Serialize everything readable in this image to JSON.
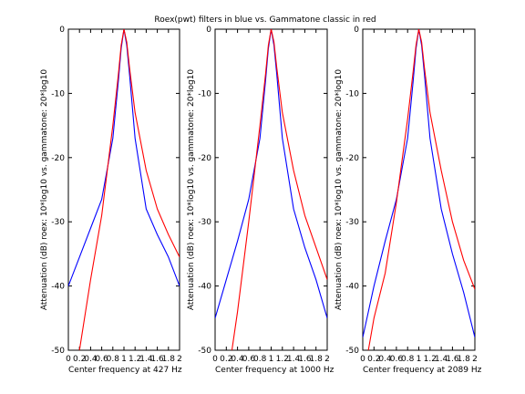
{
  "figure": {
    "title": "Roex(pwt) filters in blue vs. Gammatone classic in red"
  },
  "chart_data": [
    {
      "type": "line",
      "xlabel": "Center frequency at 427 Hz",
      "ylabel": "Attenuation (dB) roex: 10*log10 vs. gammatone: 20*log10",
      "xlim": [
        0,
        2
      ],
      "ylim": [
        -50,
        0
      ],
      "x_ticks": [
        "0",
        "0.2",
        "0.4",
        "0.6",
        "0.8",
        "1",
        "1.2",
        "1.4",
        "1.6",
        "1.8",
        "2"
      ],
      "y_ticks": [
        "0",
        "-10",
        "-20",
        "-30",
        "-40",
        "-50"
      ],
      "grid": false,
      "series": [
        {
          "color": "#0000ff",
          "x": [
            0,
            0.2,
            0.4,
            0.6,
            0.8,
            0.9,
            0.95,
            1.0,
            1.05,
            1.1,
            1.2,
            1.4,
            1.6,
            1.8,
            2.0
          ],
          "values": [
            -40,
            -35.5,
            -31,
            -26.5,
            -17,
            -8,
            -3,
            0,
            -2.5,
            -7,
            -17,
            -28,
            -32,
            -35.5,
            -40
          ]
        },
        {
          "color": "#ff0000",
          "x": [
            0.2,
            0.4,
            0.6,
            0.8,
            0.9,
            0.95,
            1.0,
            1.05,
            1.1,
            1.2,
            1.4,
            1.6,
            1.8,
            2.0
          ],
          "values": [
            -50,
            -39,
            -29,
            -15,
            -7,
            -2.5,
            0,
            -2,
            -6,
            -13,
            -22,
            -28,
            -32,
            -35.5
          ]
        }
      ]
    },
    {
      "type": "line",
      "xlabel": "Center frequency at 1000 Hz",
      "ylabel": "Attenuation (dB) roex: 10*log10 vs. gammatone: 20*log10",
      "xlim": [
        0,
        2
      ],
      "ylim": [
        -50,
        0
      ],
      "x_ticks": [
        "0",
        "0.2",
        "0.4",
        "0.6",
        "0.8",
        "1",
        "1.2",
        "1.4",
        "1.6",
        "1.8",
        "2"
      ],
      "y_ticks": [
        "0",
        "-10",
        "-20",
        "-30",
        "-40",
        "-50"
      ],
      "grid": false,
      "series": [
        {
          "color": "#0000ff",
          "x": [
            0,
            0.2,
            0.4,
            0.6,
            0.8,
            0.9,
            0.95,
            1.0,
            1.05,
            1.1,
            1.2,
            1.4,
            1.6,
            1.8,
            2.0
          ],
          "values": [
            -45,
            -39,
            -33,
            -26.5,
            -17,
            -8,
            -3,
            0,
            -2.5,
            -7,
            -17,
            -28,
            -34,
            -39,
            -45
          ]
        },
        {
          "color": "#ff0000",
          "x": [
            0.3,
            0.4,
            0.6,
            0.8,
            0.9,
            0.95,
            1.0,
            1.05,
            1.1,
            1.2,
            1.4,
            1.6,
            1.8,
            2.0
          ],
          "values": [
            -50,
            -44,
            -30,
            -15,
            -7,
            -2.5,
            0,
            -2,
            -6,
            -13,
            -22,
            -29,
            -34,
            -39
          ]
        }
      ]
    },
    {
      "type": "line",
      "xlabel": "Center frequency at 2089 Hz",
      "ylabel": "Attenuation (dB) roex: 10*log10 vs. gammatone: 20*log10",
      "xlim": [
        0,
        2
      ],
      "ylim": [
        -50,
        0
      ],
      "x_ticks": [
        "0",
        "0.2",
        "0.4",
        "0.6",
        "0.8",
        "1",
        "1.2",
        "1.4",
        "1.6",
        "1.8",
        "2"
      ],
      "y_ticks": [
        "0",
        "-10",
        "-20",
        "-30",
        "-40",
        "-50"
      ],
      "grid": false,
      "series": [
        {
          "color": "#0000ff",
          "x": [
            0,
            0.2,
            0.4,
            0.6,
            0.8,
            0.9,
            0.95,
            1.0,
            1.05,
            1.1,
            1.2,
            1.4,
            1.6,
            1.8,
            2.0
          ],
          "values": [
            -48,
            -40,
            -33,
            -26.5,
            -17,
            -8,
            -3,
            0,
            -2.5,
            -7,
            -17,
            -28,
            -35,
            -41,
            -48
          ]
        },
        {
          "color": "#ff0000",
          "x": [
            0.1,
            0.2,
            0.4,
            0.6,
            0.8,
            0.9,
            0.95,
            1.0,
            1.05,
            1.1,
            1.2,
            1.4,
            1.6,
            1.8,
            2.0
          ],
          "values": [
            -50,
            -45,
            -38,
            -27,
            -14,
            -6.5,
            -2.5,
            0,
            -2,
            -6,
            -13,
            -22,
            -30,
            -36,
            -40.5
          ]
        }
      ]
    }
  ]
}
